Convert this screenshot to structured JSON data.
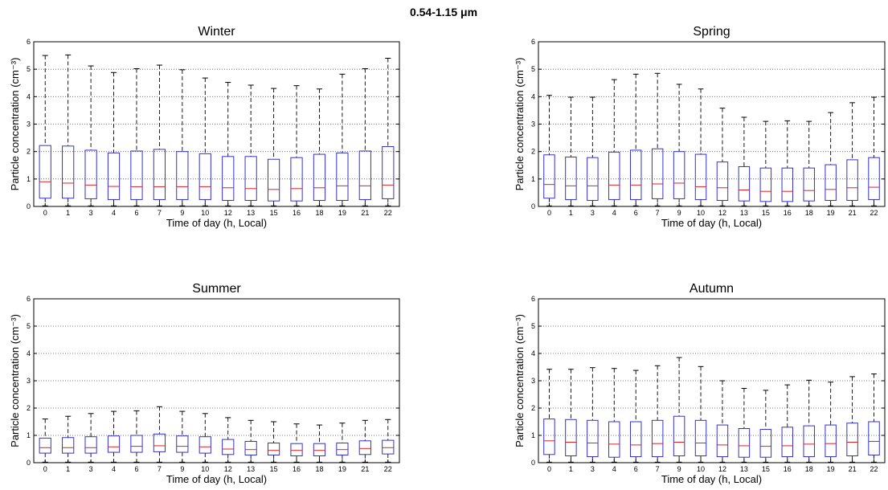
{
  "figure": {
    "suptitle": "0.54-1.15 μm"
  },
  "colors": {
    "box": "#3333cc",
    "median": "#dd2222",
    "whisker": "#000000",
    "grid": "#555555",
    "axes": "#000000"
  },
  "chart_data": [
    {
      "type": "box",
      "title": "Winter",
      "xlabel": "Time of day (h, Local)",
      "ylabel": "Particle concentration (cm⁻³)",
      "ylim": [
        0,
        6
      ],
      "yticks": [
        0,
        1,
        2,
        3,
        4,
        5,
        6
      ],
      "grid": "horizontal dotted",
      "categories": [
        "0",
        "1",
        "3",
        "4",
        "6",
        "7",
        "9",
        "10",
        "12",
        "13",
        "15",
        "16",
        "18",
        "19",
        "21",
        "22"
      ],
      "q1": [
        0.3,
        0.3,
        0.28,
        0.25,
        0.25,
        0.25,
        0.25,
        0.25,
        0.22,
        0.22,
        0.2,
        0.2,
        0.22,
        0.22,
        0.25,
        0.28
      ],
      "median": [
        0.9,
        0.85,
        0.78,
        0.73,
        0.72,
        0.72,
        0.72,
        0.72,
        0.68,
        0.65,
        0.62,
        0.65,
        0.68,
        0.75,
        0.75,
        0.78
      ],
      "q3": [
        2.22,
        2.2,
        2.05,
        1.95,
        2.02,
        2.08,
        2.0,
        1.92,
        1.82,
        1.82,
        1.72,
        1.78,
        1.9,
        1.95,
        2.02,
        2.18
      ],
      "whisker_high": [
        5.5,
        5.52,
        5.12,
        4.88,
        5.02,
        5.15,
        4.98,
        4.68,
        4.52,
        4.42,
        4.3,
        4.4,
        4.28,
        4.82,
        5.02,
        5.4
      ],
      "whisker_low": [
        0.02,
        0.02,
        0.02,
        0.02,
        0.02,
        0.02,
        0.02,
        0.02,
        0.02,
        0.02,
        0.02,
        0.02,
        0.02,
        0.02,
        0.02,
        0.02
      ]
    },
    {
      "type": "box",
      "title": "Spring",
      "xlabel": "Time of day (h, Local)",
      "ylabel": "Particle concentration (cm⁻³)",
      "ylim": [
        0,
        6
      ],
      "yticks": [
        0,
        1,
        2,
        3,
        4,
        5,
        6
      ],
      "grid": "horizontal dotted",
      "categories": [
        "0",
        "1",
        "3",
        "4",
        "6",
        "7",
        "9",
        "10",
        "12",
        "13",
        "15",
        "16",
        "18",
        "19",
        "21",
        "22"
      ],
      "q1": [
        0.3,
        0.25,
        0.22,
        0.25,
        0.25,
        0.28,
        0.28,
        0.25,
        0.22,
        0.2,
        0.18,
        0.18,
        0.2,
        0.22,
        0.22,
        0.25
      ],
      "median": [
        0.8,
        0.75,
        0.75,
        0.78,
        0.78,
        0.82,
        0.85,
        0.72,
        0.68,
        0.6,
        0.55,
        0.55,
        0.58,
        0.62,
        0.68,
        0.7
      ],
      "q3": [
        1.88,
        1.8,
        1.78,
        1.98,
        2.05,
        2.1,
        2.0,
        1.9,
        1.62,
        1.45,
        1.4,
        1.4,
        1.4,
        1.52,
        1.7,
        1.78
      ],
      "whisker_high": [
        4.05,
        3.98,
        3.98,
        4.62,
        4.82,
        4.85,
        4.45,
        4.28,
        3.58,
        3.25,
        3.1,
        3.12,
        3.1,
        3.42,
        3.78,
        3.98
      ],
      "whisker_low": [
        0.02,
        0.02,
        0.02,
        0.02,
        0.02,
        0.02,
        0.02,
        0.02,
        0.02,
        0.02,
        0.02,
        0.02,
        0.02,
        0.02,
        0.02,
        0.02
      ]
    },
    {
      "type": "box",
      "title": "Summer",
      "xlabel": "Time of day (h, Local)",
      "ylabel": "Particle concentration (cm⁻³)",
      "ylim": [
        0,
        6
      ],
      "yticks": [
        0,
        1,
        2,
        3,
        4,
        5,
        6
      ],
      "grid": "horizontal dotted",
      "categories": [
        "0",
        "1",
        "3",
        "4",
        "6",
        "7",
        "9",
        "10",
        "12",
        "13",
        "15",
        "16",
        "18",
        "19",
        "21",
        "22"
      ],
      "q1": [
        0.35,
        0.35,
        0.35,
        0.38,
        0.38,
        0.4,
        0.38,
        0.35,
        0.3,
        0.28,
        0.28,
        0.25,
        0.25,
        0.28,
        0.3,
        0.32
      ],
      "median": [
        0.55,
        0.55,
        0.55,
        0.58,
        0.6,
        0.62,
        0.6,
        0.58,
        0.5,
        0.48,
        0.45,
        0.45,
        0.45,
        0.48,
        0.52,
        0.55
      ],
      "q3": [
        0.9,
        0.92,
        0.95,
        0.98,
        1.0,
        1.05,
        0.98,
        0.95,
        0.85,
        0.78,
        0.72,
        0.7,
        0.7,
        0.72,
        0.8,
        0.82
      ],
      "whisker_high": [
        1.6,
        1.7,
        1.8,
        1.88,
        1.9,
        2.05,
        1.88,
        1.8,
        1.65,
        1.55,
        1.5,
        1.42,
        1.38,
        1.45,
        1.55,
        1.58
      ],
      "whisker_low": [
        0.02,
        0.02,
        0.02,
        0.02,
        0.02,
        0.02,
        0.02,
        0.02,
        0.02,
        0.02,
        0.02,
        0.02,
        0.02,
        0.02,
        0.02,
        0.02
      ]
    },
    {
      "type": "box",
      "title": "Autumn",
      "xlabel": "Time of day (h, Local)",
      "ylabel": "Particle concentration (cm⁻³)",
      "ylim": [
        0,
        6
      ],
      "yticks": [
        0,
        1,
        2,
        3,
        4,
        5,
        6
      ],
      "grid": "horizontal dotted",
      "categories": [
        "0",
        "1",
        "3",
        "4",
        "6",
        "7",
        "9",
        "10",
        "12",
        "13",
        "15",
        "16",
        "18",
        "19",
        "21",
        "22"
      ],
      "q1": [
        0.3,
        0.25,
        0.22,
        0.2,
        0.22,
        0.22,
        0.25,
        0.25,
        0.22,
        0.2,
        0.2,
        0.22,
        0.22,
        0.22,
        0.25,
        0.28
      ],
      "median": [
        0.8,
        0.75,
        0.72,
        0.68,
        0.65,
        0.7,
        0.75,
        0.72,
        0.65,
        0.62,
        0.6,
        0.62,
        0.68,
        0.7,
        0.75,
        0.78
      ],
      "q3": [
        1.6,
        1.58,
        1.55,
        1.5,
        1.5,
        1.55,
        1.7,
        1.55,
        1.38,
        1.25,
        1.22,
        1.3,
        1.35,
        1.38,
        1.45,
        1.5
      ],
      "whisker_high": [
        3.42,
        3.42,
        3.48,
        3.45,
        3.38,
        3.55,
        3.85,
        3.52,
        3.0,
        2.72,
        2.65,
        2.85,
        3.02,
        2.95,
        3.15,
        3.25
      ],
      "whisker_low": [
        0.02,
        0.02,
        0.02,
        0.02,
        0.02,
        0.02,
        0.02,
        0.02,
        0.02,
        0.02,
        0.02,
        0.02,
        0.02,
        0.02,
        0.02,
        0.02
      ]
    }
  ]
}
